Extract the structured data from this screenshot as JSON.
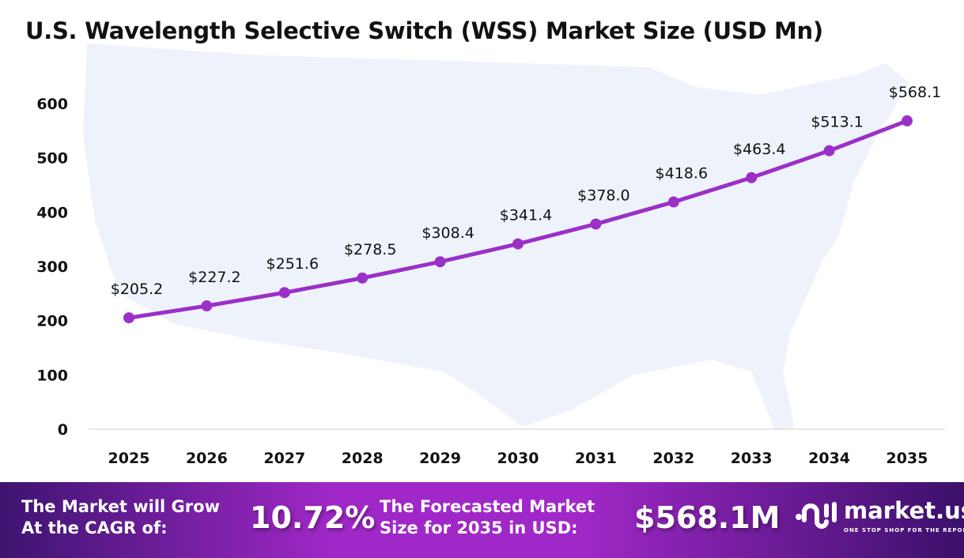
{
  "title": "U.S. Wavelength Selective Switch (WSS) Market Size (USD Mn)",
  "chart_data": {
    "type": "line",
    "title": "U.S. Wavelength Selective Switch (WSS) Market Size (USD Mn)",
    "categories": [
      "2025",
      "2026",
      "2027",
      "2028",
      "2029",
      "2030",
      "2031",
      "2032",
      "2033",
      "2034",
      "2035"
    ],
    "values": [
      205.2,
      227.2,
      251.6,
      278.5,
      308.4,
      341.4,
      378.0,
      418.6,
      463.4,
      513.1,
      568.1
    ],
    "data_labels": [
      "$205.2",
      "$227.2",
      "$251.6",
      "$278.5",
      "$308.4",
      "$341.4",
      "$378.0",
      "$418.6",
      "$463.4",
      "$513.1",
      "$568.1"
    ],
    "yticks": [
      0,
      100,
      200,
      300,
      400,
      500,
      600
    ],
    "ylim": [
      0,
      600
    ],
    "grid": false,
    "line_color": "#9b30c8",
    "background": "U.S. map silhouette"
  },
  "footer": {
    "cagr_label_1": "The Market will Grow",
    "cagr_label_2": "At the CAGR of:",
    "cagr_value": "10.72%",
    "forecast_label_1": "The Forecasted Market",
    "forecast_label_2": "Size for 2035 in USD:",
    "forecast_value": "$568.1M",
    "brand": "market.us",
    "tagline": "ONE STOP SHOP FOR THE REPORTS"
  }
}
